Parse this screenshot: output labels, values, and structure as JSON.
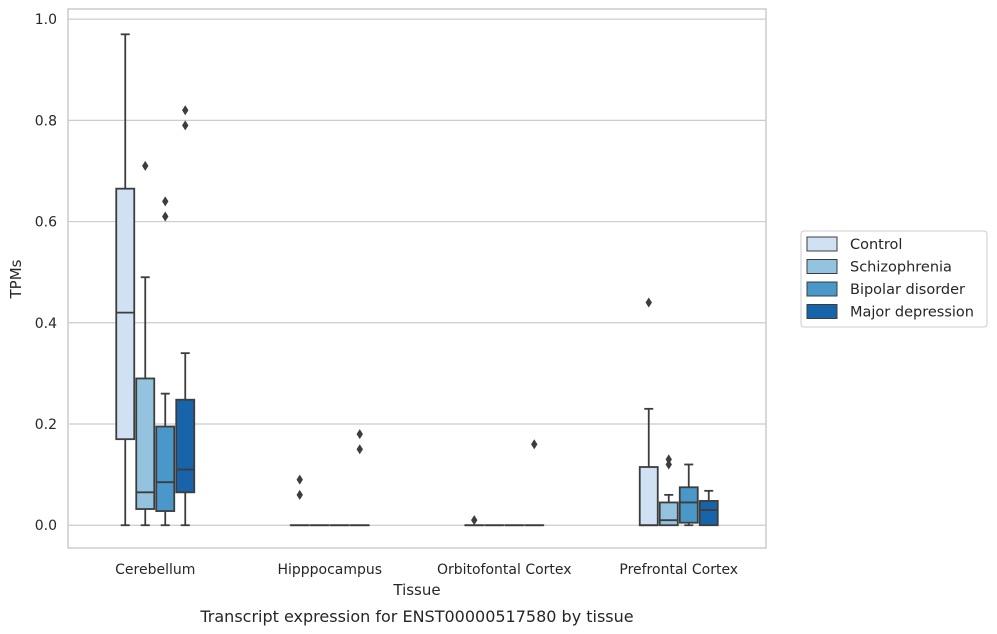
{
  "chart_data": {
    "type": "boxplot",
    "caption": "Transcript expression for ENST00000517580 by tissue",
    "xlabel": "Tissue",
    "ylabel": "TPMs",
    "ylim": [
      -0.045,
      1.02
    ],
    "yticks": [
      "0.0",
      "0.2",
      "0.4",
      "0.6",
      "0.8",
      "1.0"
    ],
    "ytick_values": [
      0,
      0.2,
      0.4,
      0.6,
      0.8,
      1.0
    ],
    "grid": "horizontal",
    "legend_position": "right",
    "categories": [
      "Cerebellum",
      "Hipppocampus",
      "Orbitofontal Cortex",
      "Prefrontal Cortex"
    ],
    "series": [
      {
        "name": "Control",
        "color": "#cfe1f2",
        "boxes": [
          {
            "whislo": 0,
            "q1": 0.17,
            "med": 0.42,
            "q3": 0.665,
            "whishi": 0.97,
            "fliers": []
          },
          {
            "whislo": 0,
            "q1": 0,
            "med": 0,
            "q3": 0,
            "whishi": 0,
            "fliers": [
              0.06,
              0.09
            ]
          },
          {
            "whislo": 0,
            "q1": 0,
            "med": 0,
            "q3": 0,
            "whishi": 0,
            "fliers": [
              0.01
            ]
          },
          {
            "whislo": 0,
            "q1": 0,
            "med": 0,
            "q3": 0.115,
            "whishi": 0.23,
            "fliers": [
              0.44
            ]
          }
        ]
      },
      {
        "name": "Schizophrenia",
        "color": "#93c3df",
        "boxes": [
          {
            "whislo": 0,
            "q1": 0.032,
            "med": 0.065,
            "q3": 0.29,
            "whishi": 0.49,
            "fliers": [
              0.71
            ]
          },
          {
            "whislo": 0,
            "q1": 0,
            "med": 0,
            "q3": 0,
            "whishi": 0,
            "fliers": []
          },
          {
            "whislo": 0,
            "q1": 0,
            "med": 0,
            "q3": 0,
            "whishi": 0,
            "fliers": []
          },
          {
            "whislo": 0,
            "q1": 0,
            "med": 0.01,
            "q3": 0.045,
            "whishi": 0.06,
            "fliers": [
              0.12,
              0.13
            ]
          }
        ]
      },
      {
        "name": "Bipolar disorder",
        "color": "#4a98c9",
        "boxes": [
          {
            "whislo": 0,
            "q1": 0.028,
            "med": 0.085,
            "q3": 0.195,
            "whishi": 0.26,
            "fliers": [
              0.61,
              0.64
            ]
          },
          {
            "whislo": 0,
            "q1": 0,
            "med": 0,
            "q3": 0,
            "whishi": 0,
            "fliers": []
          },
          {
            "whislo": 0,
            "q1": 0,
            "med": 0,
            "q3": 0,
            "whishi": 0,
            "fliers": []
          },
          {
            "whislo": 0,
            "q1": 0.005,
            "med": 0.045,
            "q3": 0.075,
            "whishi": 0.12,
            "fliers": []
          }
        ]
      },
      {
        "name": "Major depression",
        "color": "#1764ab",
        "boxes": [
          {
            "whislo": 0,
            "q1": 0.065,
            "med": 0.11,
            "q3": 0.248,
            "whishi": 0.34,
            "fliers": [
              0.79,
              0.82
            ]
          },
          {
            "whislo": 0,
            "q1": 0,
            "med": 0,
            "q3": 0,
            "whishi": 0,
            "fliers": [
              0.15,
              0.18
            ]
          },
          {
            "whislo": 0,
            "q1": 0,
            "med": 0,
            "q3": 0,
            "whishi": 0,
            "fliers": [
              0.16
            ]
          },
          {
            "whislo": 0,
            "q1": 0,
            "med": 0.03,
            "q3": 0.048,
            "whishi": 0.068,
            "fliers": []
          }
        ]
      }
    ]
  }
}
